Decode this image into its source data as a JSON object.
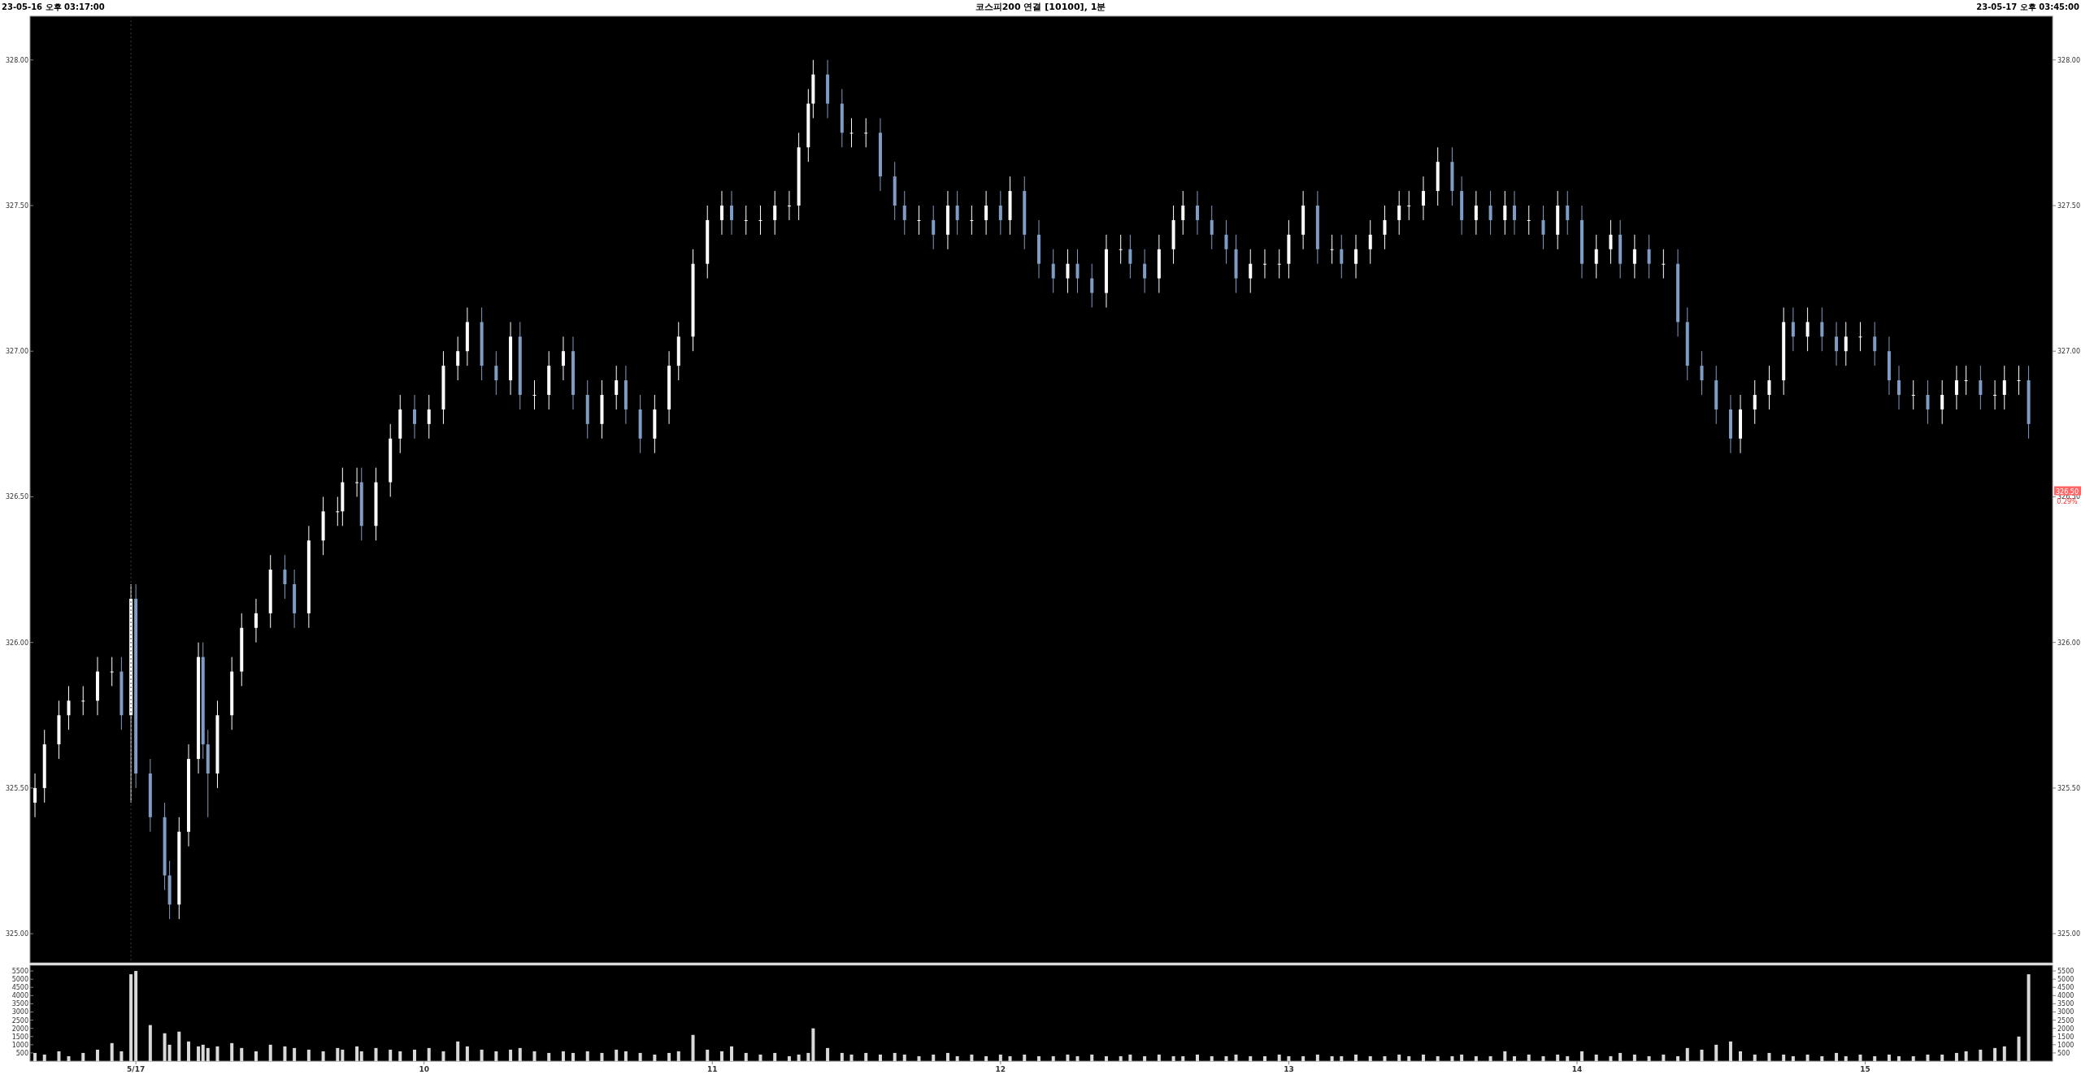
{
  "chart_data": [
    {
      "type": "candlestick",
      "title": "코스피200 연결 [10100], 1분",
      "annotations": [
        "23-05-16 오후 03:17:00",
        "23-05-17 오후 03:45:00",
        "326.50",
        "0.29%"
      ],
      "x": [
        8.65,
        8.683,
        8.733,
        8.767,
        8.817,
        8.867,
        8.917,
        8.95,
        8.983,
        9.0,
        9.05,
        9.1,
        9.117,
        9.15,
        9.183,
        9.217,
        9.233,
        9.25,
        9.283,
        9.333,
        9.367,
        9.417,
        9.467,
        9.517,
        9.55,
        9.6,
        9.65,
        9.7,
        9.717,
        9.767,
        9.783,
        9.833,
        9.883,
        9.917,
        9.967,
        10.017,
        10.067,
        10.117,
        10.15,
        10.2,
        10.25,
        10.3,
        10.333,
        10.383,
        10.433,
        10.483,
        10.517,
        10.567,
        10.617,
        10.667,
        10.7,
        10.75,
        10.8,
        10.85,
        10.883,
        10.933,
        10.983,
        11.033,
        11.067,
        11.117,
        11.167,
        11.217,
        11.267,
        11.3,
        11.333,
        11.35,
        11.4,
        11.45,
        11.483,
        11.533,
        11.583,
        11.633,
        11.667,
        11.717,
        11.767,
        11.817,
        11.85,
        11.9,
        11.95,
        12.0,
        12.033,
        12.083,
        12.133,
        12.183,
        12.233,
        12.267,
        12.317,
        12.367,
        12.417,
        12.45,
        12.5,
        12.55,
        12.6,
        12.633,
        12.683,
        12.733,
        12.783,
        12.817,
        12.867,
        12.917,
        12.967,
        13.0,
        13.05,
        13.1,
        13.15,
        13.183,
        13.233,
        13.283,
        13.333,
        13.383,
        13.417,
        13.467,
        13.517,
        13.567,
        13.6,
        13.65,
        13.7,
        13.75,
        13.783,
        13.833,
        13.883,
        13.933,
        13.967,
        14.017,
        14.067,
        14.117,
        14.15,
        14.2,
        14.25,
        14.3,
        14.35,
        14.383,
        14.433,
        14.483,
        14.533,
        14.567,
        14.617,
        14.667,
        14.717,
        14.75,
        14.8,
        14.85,
        14.9,
        14.933,
        14.983,
        15.033,
        15.083,
        15.117,
        15.167,
        15.217,
        15.267,
        15.317,
        15.35,
        15.4,
        15.45,
        15.483,
        15.533,
        15.567
      ],
      "ohlc": [
        [
          325.45,
          325.55,
          325.4,
          325.5
        ],
        [
          325.5,
          325.7,
          325.45,
          325.65
        ],
        [
          325.65,
          325.8,
          325.6,
          325.75
        ],
        [
          325.75,
          325.85,
          325.7,
          325.8
        ],
        [
          325.8,
          325.85,
          325.75,
          325.8
        ],
        [
          325.8,
          325.95,
          325.75,
          325.9
        ],
        [
          325.9,
          325.95,
          325.85,
          325.9
        ],
        [
          325.9,
          325.95,
          325.7,
          325.75
        ],
        [
          325.75,
          326.2,
          325.45,
          326.15
        ],
        [
          326.15,
          326.2,
          325.5,
          325.55
        ],
        [
          325.55,
          325.6,
          325.35,
          325.4
        ],
        [
          325.4,
          325.45,
          325.15,
          325.2
        ],
        [
          325.2,
          325.25,
          325.05,
          325.1
        ],
        [
          325.1,
          325.4,
          325.05,
          325.35
        ],
        [
          325.35,
          325.65,
          325.3,
          325.6
        ],
        [
          325.6,
          326.0,
          325.55,
          325.95
        ],
        [
          325.95,
          326.0,
          325.6,
          325.65
        ],
        [
          325.65,
          325.7,
          325.4,
          325.55
        ],
        [
          325.55,
          325.8,
          325.5,
          325.75
        ],
        [
          325.75,
          325.95,
          325.7,
          325.9
        ],
        [
          325.9,
          326.1,
          325.85,
          326.05
        ],
        [
          326.05,
          326.15,
          326.0,
          326.1
        ],
        [
          326.1,
          326.3,
          326.05,
          326.25
        ],
        [
          326.25,
          326.3,
          326.15,
          326.2
        ],
        [
          326.2,
          326.25,
          326.05,
          326.1
        ],
        [
          326.1,
          326.4,
          326.05,
          326.35
        ],
        [
          326.35,
          326.5,
          326.3,
          326.45
        ],
        [
          326.45,
          326.5,
          326.4,
          326.45
        ],
        [
          326.45,
          326.6,
          326.4,
          326.55
        ],
        [
          326.55,
          326.6,
          326.5,
          326.55
        ],
        [
          326.55,
          326.6,
          326.35,
          326.4
        ],
        [
          326.4,
          326.6,
          326.35,
          326.55
        ],
        [
          326.55,
          326.75,
          326.5,
          326.7
        ],
        [
          326.7,
          326.85,
          326.65,
          326.8
        ],
        [
          326.8,
          326.85,
          326.7,
          326.75
        ],
        [
          326.75,
          326.85,
          326.7,
          326.8
        ],
        [
          326.8,
          327.0,
          326.75,
          326.95
        ],
        [
          326.95,
          327.05,
          326.9,
          327.0
        ],
        [
          327.0,
          327.15,
          326.95,
          327.1
        ],
        [
          327.1,
          327.15,
          326.9,
          326.95
        ],
        [
          326.95,
          327.0,
          326.85,
          326.9
        ],
        [
          326.9,
          327.1,
          326.85,
          327.05
        ],
        [
          327.05,
          327.1,
          326.8,
          326.85
        ],
        [
          326.85,
          326.9,
          326.8,
          326.85
        ],
        [
          326.85,
          327.0,
          326.8,
          326.95
        ],
        [
          326.95,
          327.05,
          326.9,
          327.0
        ],
        [
          327.0,
          327.05,
          326.8,
          326.85
        ],
        [
          326.85,
          326.9,
          326.7,
          326.75
        ],
        [
          326.75,
          326.9,
          326.7,
          326.85
        ],
        [
          326.85,
          326.95,
          326.8,
          326.9
        ],
        [
          326.9,
          326.95,
          326.75,
          326.8
        ],
        [
          326.8,
          326.85,
          326.65,
          326.7
        ],
        [
          326.7,
          326.85,
          326.65,
          326.8
        ],
        [
          326.8,
          327.0,
          326.75,
          326.95
        ],
        [
          326.95,
          327.1,
          326.9,
          327.05
        ],
        [
          327.05,
          327.35,
          327.0,
          327.3
        ],
        [
          327.3,
          327.5,
          327.25,
          327.45
        ],
        [
          327.45,
          327.55,
          327.4,
          327.5
        ],
        [
          327.5,
          327.55,
          327.4,
          327.45
        ],
        [
          327.45,
          327.5,
          327.4,
          327.45
        ],
        [
          327.45,
          327.5,
          327.4,
          327.45
        ],
        [
          327.45,
          327.55,
          327.4,
          327.5
        ],
        [
          327.5,
          327.55,
          327.45,
          327.5
        ],
        [
          327.5,
          327.75,
          327.45,
          327.7
        ],
        [
          327.7,
          327.9,
          327.65,
          327.85
        ],
        [
          327.85,
          328.0,
          327.8,
          327.95
        ],
        [
          327.95,
          328.0,
          327.8,
          327.85
        ],
        [
          327.85,
          327.9,
          327.7,
          327.75
        ],
        [
          327.75,
          327.8,
          327.7,
          327.75
        ],
        [
          327.75,
          327.8,
          327.7,
          327.75
        ],
        [
          327.75,
          327.8,
          327.55,
          327.6
        ],
        [
          327.6,
          327.65,
          327.45,
          327.5
        ],
        [
          327.5,
          327.55,
          327.4,
          327.45
        ],
        [
          327.45,
          327.5,
          327.4,
          327.45
        ],
        [
          327.45,
          327.5,
          327.35,
          327.4
        ],
        [
          327.4,
          327.55,
          327.35,
          327.5
        ],
        [
          327.5,
          327.55,
          327.4,
          327.45
        ],
        [
          327.45,
          327.5,
          327.4,
          327.45
        ],
        [
          327.45,
          327.55,
          327.4,
          327.5
        ],
        [
          327.5,
          327.55,
          327.4,
          327.45
        ],
        [
          327.45,
          327.6,
          327.4,
          327.55
        ],
        [
          327.55,
          327.6,
          327.35,
          327.4
        ],
        [
          327.4,
          327.45,
          327.25,
          327.3
        ],
        [
          327.3,
          327.35,
          327.2,
          327.25
        ],
        [
          327.25,
          327.35,
          327.2,
          327.3
        ],
        [
          327.3,
          327.35,
          327.2,
          327.25
        ],
        [
          327.25,
          327.3,
          327.15,
          327.2
        ],
        [
          327.2,
          327.4,
          327.15,
          327.35
        ],
        [
          327.35,
          327.4,
          327.3,
          327.35
        ],
        [
          327.35,
          327.4,
          327.25,
          327.3
        ],
        [
          327.3,
          327.35,
          327.2,
          327.25
        ],
        [
          327.25,
          327.4,
          327.2,
          327.35
        ],
        [
          327.35,
          327.5,
          327.3,
          327.45
        ],
        [
          327.45,
          327.55,
          327.4,
          327.5
        ],
        [
          327.5,
          327.55,
          327.4,
          327.45
        ],
        [
          327.45,
          327.5,
          327.35,
          327.4
        ],
        [
          327.4,
          327.45,
          327.3,
          327.35
        ],
        [
          327.35,
          327.4,
          327.2,
          327.25
        ],
        [
          327.25,
          327.35,
          327.2,
          327.3
        ],
        [
          327.3,
          327.35,
          327.25,
          327.3
        ],
        [
          327.3,
          327.35,
          327.25,
          327.3
        ],
        [
          327.3,
          327.45,
          327.25,
          327.4
        ],
        [
          327.4,
          327.55,
          327.35,
          327.5
        ],
        [
          327.5,
          327.55,
          327.3,
          327.35
        ],
        [
          327.35,
          327.4,
          327.3,
          327.35
        ],
        [
          327.35,
          327.4,
          327.25,
          327.3
        ],
        [
          327.3,
          327.4,
          327.25,
          327.35
        ],
        [
          327.35,
          327.45,
          327.3,
          327.4
        ],
        [
          327.4,
          327.5,
          327.35,
          327.45
        ],
        [
          327.45,
          327.55,
          327.4,
          327.5
        ],
        [
          327.5,
          327.55,
          327.45,
          327.5
        ],
        [
          327.5,
          327.6,
          327.45,
          327.55
        ],
        [
          327.55,
          327.7,
          327.5,
          327.65
        ],
        [
          327.65,
          327.7,
          327.5,
          327.55
        ],
        [
          327.55,
          327.6,
          327.4,
          327.45
        ],
        [
          327.45,
          327.55,
          327.4,
          327.5
        ],
        [
          327.5,
          327.55,
          327.4,
          327.45
        ],
        [
          327.45,
          327.55,
          327.4,
          327.5
        ],
        [
          327.5,
          327.55,
          327.4,
          327.45
        ],
        [
          327.45,
          327.5,
          327.4,
          327.45
        ],
        [
          327.45,
          327.5,
          327.35,
          327.4
        ],
        [
          327.4,
          327.55,
          327.35,
          327.5
        ],
        [
          327.5,
          327.55,
          327.4,
          327.45
        ],
        [
          327.45,
          327.5,
          327.25,
          327.3
        ],
        [
          327.3,
          327.4,
          327.25,
          327.35
        ],
        [
          327.35,
          327.45,
          327.3,
          327.4
        ],
        [
          327.4,
          327.45,
          327.25,
          327.3
        ],
        [
          327.3,
          327.4,
          327.25,
          327.35
        ],
        [
          327.35,
          327.4,
          327.25,
          327.3
        ],
        [
          327.3,
          327.35,
          327.25,
          327.3
        ],
        [
          327.3,
          327.35,
          327.05,
          327.1
        ],
        [
          327.1,
          327.15,
          326.9,
          326.95
        ],
        [
          326.95,
          327.0,
          326.85,
          326.9
        ],
        [
          326.9,
          326.95,
          326.75,
          326.8
        ],
        [
          326.8,
          326.85,
          326.65,
          326.7
        ],
        [
          326.7,
          326.85,
          326.65,
          326.8
        ],
        [
          326.8,
          326.9,
          326.75,
          326.85
        ],
        [
          326.85,
          326.95,
          326.8,
          326.9
        ],
        [
          326.9,
          327.15,
          326.85,
          327.1
        ],
        [
          327.1,
          327.15,
          327.0,
          327.05
        ],
        [
          327.05,
          327.15,
          327.0,
          327.1
        ],
        [
          327.1,
          327.15,
          327.0,
          327.05
        ],
        [
          327.05,
          327.1,
          326.95,
          327.0
        ],
        [
          327.0,
          327.1,
          326.95,
          327.05
        ],
        [
          327.05,
          327.1,
          327.0,
          327.05
        ],
        [
          327.05,
          327.1,
          326.95,
          327.0
        ],
        [
          327.0,
          327.05,
          326.85,
          326.9
        ],
        [
          326.9,
          326.95,
          326.8,
          326.85
        ],
        [
          326.85,
          326.9,
          326.8,
          326.85
        ],
        [
          326.85,
          326.9,
          326.75,
          326.8
        ],
        [
          326.8,
          326.9,
          326.75,
          326.85
        ],
        [
          326.85,
          326.95,
          326.8,
          326.9
        ],
        [
          326.9,
          326.95,
          326.85,
          326.9
        ],
        [
          326.9,
          326.95,
          326.8,
          326.85
        ],
        [
          326.85,
          326.9,
          326.8,
          326.85
        ],
        [
          326.85,
          326.95,
          326.8,
          326.9
        ],
        [
          326.9,
          326.95,
          326.85,
          326.9
        ],
        [
          326.9,
          326.95,
          326.7,
          326.75
        ]
      ],
      "colors": [
        "#ffffff",
        "#ffffff",
        "#ffffff",
        "#ffffff",
        "#ffffff",
        "#ffffff",
        "#ffffff",
        "#7f9cc4",
        "#ffffff",
        "#7f9cc4",
        "#7f9cc4",
        "#7f9cc4",
        "#7f9cc4",
        "#ffffff",
        "#ffffff",
        "#ffffff",
        "#7f9cc4",
        "#7f9cc4",
        "#ffffff",
        "#ffffff",
        "#ffffff",
        "#ffffff",
        "#ffffff",
        "#7f9cc4",
        "#7f9cc4",
        "#ffffff",
        "#ffffff",
        "#ffffff",
        "#ffffff",
        "#ffffff",
        "#7f9cc4",
        "#ffffff",
        "#ffffff",
        "#ffffff",
        "#7f9cc4",
        "#ffffff",
        "#ffffff",
        "#ffffff",
        "#ffffff",
        "#7f9cc4",
        "#7f9cc4",
        "#ffffff",
        "#7f9cc4",
        "#ffffff",
        "#ffffff",
        "#ffffff",
        "#7f9cc4",
        "#7f9cc4",
        "#ffffff",
        "#ffffff",
        "#7f9cc4",
        "#7f9cc4",
        "#ffffff",
        "#ffffff",
        "#ffffff",
        "#ffffff",
        "#ffffff",
        "#ffffff",
        "#7f9cc4",
        "#ffffff",
        "#ffffff",
        "#ffffff",
        "#ffffff",
        "#ffffff",
        "#ffffff",
        "#ffffff",
        "#7f9cc4",
        "#7f9cc4",
        "#ffffff",
        "#ffffff",
        "#7f9cc4",
        "#7f9cc4",
        "#7f9cc4",
        "#ffffff",
        "#7f9cc4",
        "#ffffff",
        "#7f9cc4",
        "#ffffff",
        "#ffffff",
        "#7f9cc4",
        "#ffffff",
        "#7f9cc4",
        "#7f9cc4",
        "#7f9cc4",
        "#ffffff",
        "#7f9cc4",
        "#7f9cc4",
        "#ffffff",
        "#ffffff",
        "#7f9cc4",
        "#7f9cc4",
        "#ffffff",
        "#ffffff",
        "#ffffff",
        "#7f9cc4",
        "#7f9cc4",
        "#7f9cc4",
        "#7f9cc4",
        "#ffffff",
        "#ffffff",
        "#ffffff",
        "#ffffff",
        "#ffffff",
        "#7f9cc4",
        "#ffffff",
        "#7f9cc4",
        "#ffffff",
        "#ffffff",
        "#ffffff",
        "#ffffff",
        "#ffffff",
        "#ffffff",
        "#ffffff",
        "#7f9cc4",
        "#7f9cc4",
        "#ffffff",
        "#7f9cc4",
        "#ffffff",
        "#7f9cc4",
        "#ffffff",
        "#7f9cc4",
        "#ffffff",
        "#7f9cc4",
        "#7f9cc4",
        "#ffffff",
        "#ffffff",
        "#7f9cc4",
        "#ffffff",
        "#7f9cc4",
        "#ffffff",
        "#7f9cc4",
        "#7f9cc4",
        "#7f9cc4",
        "#7f9cc4",
        "#7f9cc4",
        "#ffffff",
        "#ffffff",
        "#ffffff",
        "#ffffff",
        "#7f9cc4",
        "#ffffff",
        "#7f9cc4",
        "#7f9cc4",
        "#ffffff",
        "#ffffff",
        "#7f9cc4",
        "#7f9cc4",
        "#7f9cc4",
        "#ffffff",
        "#7f9cc4",
        "#ffffff",
        "#ffffff",
        "#ffffff",
        "#7f9cc4",
        "#ffffff",
        "#ffffff",
        "#ffffff",
        "#7f9cc4"
      ],
      "xlim": [
        8.633,
        15.65
      ],
      "ylim": [
        324.9,
        328.15
      ],
      "yticks": [
        {
          "value": 325,
          "label": "325.00"
        },
        {
          "value": 325.5,
          "label": "325.50"
        },
        {
          "value": 326,
          "label": "326.00"
        },
        {
          "value": 326.5,
          "label": "326.50"
        },
        {
          "value": 327,
          "label": "327.00"
        },
        {
          "value": 327.5,
          "label": "327.50"
        },
        {
          "value": 328,
          "label": "328.00"
        }
      ],
      "y2lim": [
        324.9,
        328.15
      ],
      "y2ticks": [
        {
          "value": 325,
          "label": "325.00"
        },
        {
          "value": 325.5,
          "label": "325.50"
        },
        {
          "value": 326,
          "label": "326.00"
        },
        {
          "value": 326.5,
          "label": "326.50"
        },
        {
          "value": 327,
          "label": "327.00"
        },
        {
          "value": 327.5,
          "label": "327.50"
        },
        {
          "value": 328,
          "label": "328.00"
        }
      ],
      "ref_lines": [
        {
          "axis": "x",
          "value": 8.983,
          "color": "#3a3a3a",
          "line_style": "dotted"
        }
      ],
      "tick_labels": "y"
    },
    {
      "type": "bar",
      "x": [
        8.65,
        8.683,
        8.733,
        8.767,
        8.817,
        8.867,
        8.917,
        8.95,
        8.983,
        9.0,
        9.05,
        9.1,
        9.117,
        9.15,
        9.183,
        9.217,
        9.233,
        9.25,
        9.283,
        9.333,
        9.367,
        9.417,
        9.467,
        9.517,
        9.55,
        9.6,
        9.65,
        9.7,
        9.717,
        9.767,
        9.783,
        9.833,
        9.883,
        9.917,
        9.967,
        10.017,
        10.067,
        10.117,
        10.15,
        10.2,
        10.25,
        10.3,
        10.333,
        10.383,
        10.433,
        10.483,
        10.517,
        10.567,
        10.617,
        10.667,
        10.7,
        10.75,
        10.8,
        10.85,
        10.883,
        10.933,
        10.983,
        11.033,
        11.067,
        11.117,
        11.167,
        11.217,
        11.267,
        11.3,
        11.333,
        11.35,
        11.4,
        11.45,
        11.483,
        11.533,
        11.583,
        11.633,
        11.667,
        11.717,
        11.767,
        11.817,
        11.85,
        11.9,
        11.95,
        12.0,
        12.033,
        12.083,
        12.133,
        12.183,
        12.233,
        12.267,
        12.317,
        12.367,
        12.417,
        12.45,
        12.5,
        12.55,
        12.6,
        12.633,
        12.683,
        12.733,
        12.783,
        12.817,
        12.867,
        12.917,
        12.967,
        13.0,
        13.05,
        13.1,
        13.15,
        13.183,
        13.233,
        13.283,
        13.333,
        13.383,
        13.417,
        13.467,
        13.517,
        13.567,
        13.6,
        13.65,
        13.7,
        13.75,
        13.783,
        13.833,
        13.883,
        13.933,
        13.967,
        14.017,
        14.067,
        14.117,
        14.15,
        14.2,
        14.25,
        14.3,
        14.35,
        14.383,
        14.433,
        14.483,
        14.533,
        14.567,
        14.617,
        14.667,
        14.717,
        14.75,
        14.8,
        14.85,
        14.9,
        14.933,
        14.983,
        15.033,
        15.083,
        15.117,
        15.167,
        15.217,
        15.267,
        15.317,
        15.35,
        15.4,
        15.45,
        15.483,
        15.533,
        15.567
      ],
      "values": [
        500,
        400,
        600,
        300,
        500,
        700,
        1100,
        600,
        5300,
        5500,
        2200,
        1700,
        1000,
        1800,
        1200,
        900,
        1000,
        800,
        900,
        1100,
        800,
        600,
        1000,
        900,
        800,
        700,
        600,
        800,
        700,
        900,
        600,
        800,
        700,
        600,
        700,
        800,
        600,
        1200,
        900,
        700,
        600,
        700,
        800,
        600,
        500,
        600,
        500,
        600,
        500,
        700,
        600,
        500,
        400,
        500,
        600,
        1600,
        700,
        600,
        900,
        500,
        400,
        500,
        300,
        400,
        500,
        2000,
        800,
        500,
        400,
        500,
        400,
        500,
        400,
        300,
        400,
        500,
        300,
        400,
        300,
        400,
        300,
        400,
        300,
        300,
        400,
        300,
        400,
        300,
        300,
        400,
        300,
        400,
        300,
        300,
        400,
        300,
        300,
        400,
        300,
        300,
        400,
        300,
        300,
        400,
        300,
        300,
        400,
        300,
        300,
        400,
        300,
        400,
        300,
        300,
        400,
        300,
        300,
        600,
        300,
        400,
        300,
        400,
        300,
        600,
        400,
        300,
        500,
        400,
        300,
        400,
        300,
        800,
        700,
        1000,
        1200,
        600,
        400,
        500,
        400,
        300,
        400,
        300,
        500,
        300,
        400,
        300,
        400,
        300,
        300,
        400,
        400,
        500,
        600,
        700,
        800,
        900,
        1500,
        5300
      ],
      "color": "#d9d9d9",
      "xlim": [
        8.633,
        15.65
      ],
      "ylim": [
        0,
        5850
      ],
      "xticks": [
        {
          "value": 9,
          "label": "5/17"
        },
        10,
        11,
        12,
        13,
        14,
        15
      ],
      "yticks": [
        500,
        1000,
        1500,
        2000,
        2500,
        3000,
        3500,
        4000,
        4500,
        5000,
        5500
      ],
      "y2lim": [
        0,
        5850
      ],
      "y2ticks": [
        500,
        1000,
        1500,
        2000,
        2500,
        3000,
        3500,
        4000,
        4500,
        5000,
        5500
      ]
    }
  ]
}
